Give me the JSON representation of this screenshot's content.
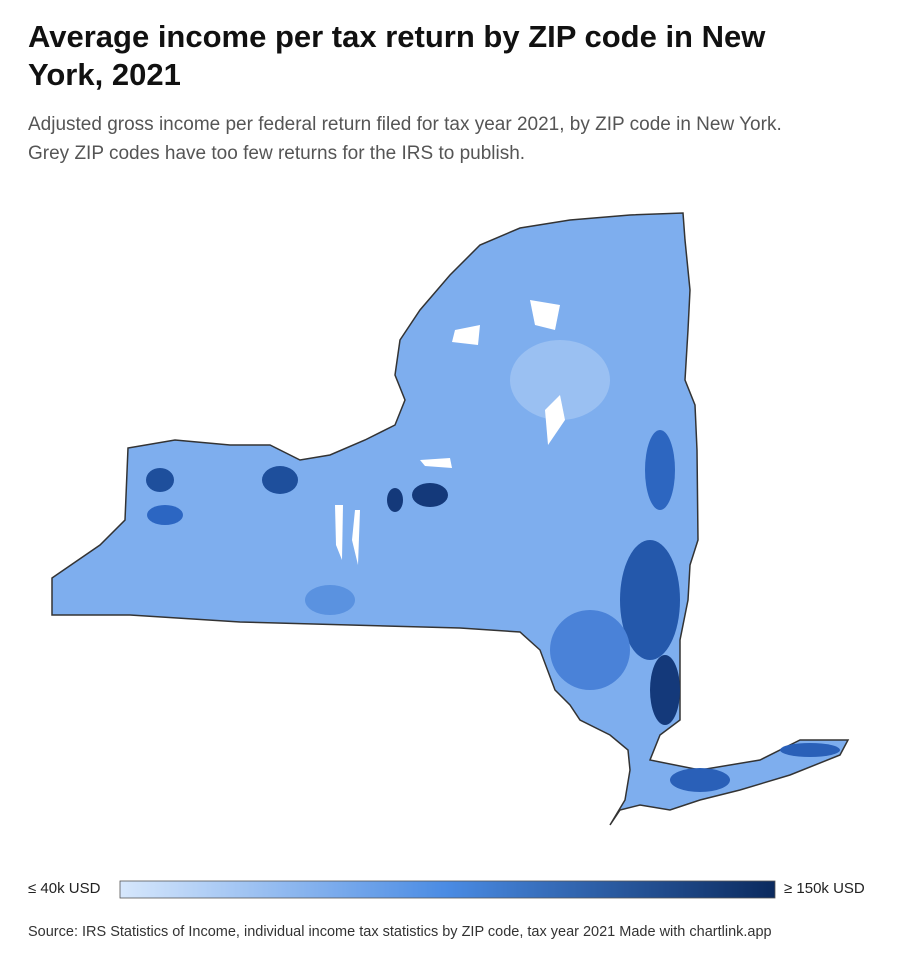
{
  "header": {
    "title": "Average income per tax return by ZIP code in New York, 2021",
    "subtitle": [
      "Adjusted gross income per federal return filed for tax year 2021, by ZIP code in New York.",
      "Grey ZIP codes have too few returns for the IRS to publish."
    ]
  },
  "legend": {
    "min_label": "≤ 40k USD",
    "max_label": "≥ 150k USD",
    "colors": [
      "#d6e7fc",
      "#4a8be3",
      "#0b2a5e"
    ]
  },
  "footer": {
    "source": "Source: IRS Statistics of Income, individual income tax statistics by ZIP code, tax year 2021 Made with chartlink.app"
  }
}
